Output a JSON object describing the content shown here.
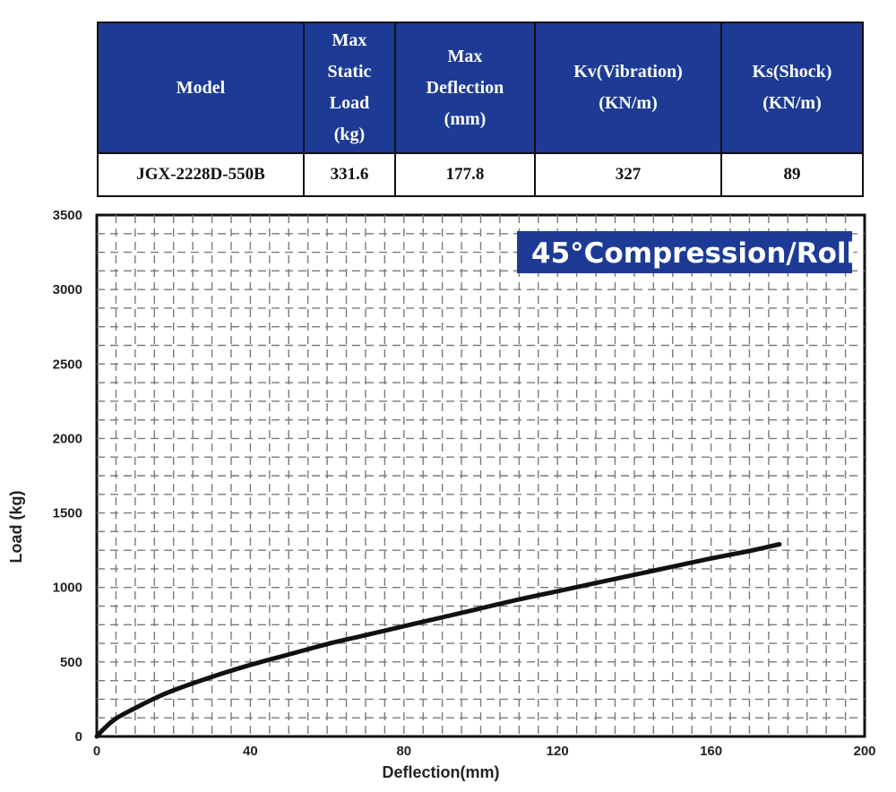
{
  "table": {
    "headers": [
      {
        "lines": [
          "Model"
        ]
      },
      {
        "lines": [
          "Max",
          "Static",
          "Load",
          "(kg)"
        ]
      },
      {
        "lines": [
          "Max",
          "Deflection",
          "(mm)"
        ]
      },
      {
        "lines": [
          "Kv(Vibration)",
          "(KN/m)"
        ]
      },
      {
        "lines": [
          "Ks(Shock)",
          "(KN/m)"
        ]
      }
    ],
    "row": {
      "model": "JGX-2228D-550B",
      "max_static_load": "331.6",
      "max_deflection": "177.8",
      "kv": "327",
      "ks": "89"
    },
    "header_color": "#1d3b95"
  },
  "chart_data": {
    "type": "line",
    "badge": "45°Compression/Roll",
    "xlabel": "Deflection(mm)",
    "ylabel": "Load (kg)",
    "xlim": [
      0,
      200
    ],
    "ylim": [
      0,
      3500
    ],
    "x_ticks": [
      0,
      40,
      80,
      120,
      160,
      200
    ],
    "y_ticks": [
      0,
      500,
      1000,
      1500,
      2000,
      2500,
      3000,
      3500
    ],
    "grid": true,
    "series": [
      {
        "color": "#111111",
        "x": [
          0,
          2,
          5,
          10,
          15,
          20,
          30,
          40,
          50,
          60,
          70,
          80,
          90,
          100,
          110,
          120,
          130,
          140,
          150,
          160,
          170,
          177.8
        ],
        "y": [
          0,
          55,
          120,
          190,
          255,
          310,
          400,
          480,
          550,
          620,
          680,
          740,
          800,
          860,
          920,
          975,
          1030,
          1085,
          1140,
          1195,
          1245,
          1290
        ]
      }
    ]
  }
}
